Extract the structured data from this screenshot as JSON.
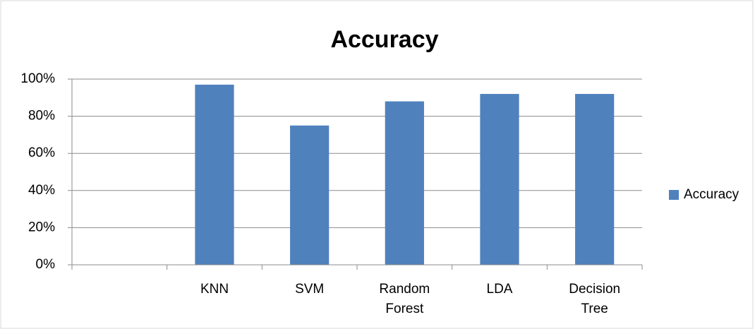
{
  "chart_data": {
    "type": "bar",
    "title": "Accuracy",
    "categories": [
      null,
      "KNN",
      "SVM",
      "Random Forest",
      "LDA",
      "Decision Tree"
    ],
    "series": [
      {
        "name": "Accuracy",
        "color": "#4f81bd",
        "values": [
          null,
          97,
          75,
          88,
          92,
          92
        ]
      }
    ],
    "ylim": [
      0,
      100
    ],
    "yticks": [
      {
        "value": 0,
        "label": "0%"
      },
      {
        "value": 20,
        "label": "20%"
      },
      {
        "value": 40,
        "label": "40%"
      },
      {
        "value": 60,
        "label": "60%"
      },
      {
        "value": 80,
        "label": "80%"
      },
      {
        "value": 100,
        "label": "100%"
      }
    ],
    "grid": true,
    "legend": "right"
  }
}
